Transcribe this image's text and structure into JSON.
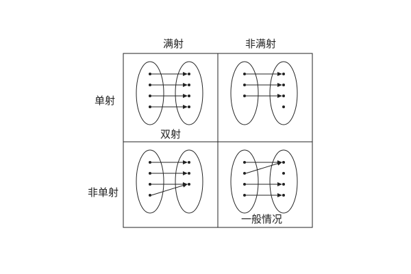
{
  "columns": [
    "满射",
    "非满射"
  ],
  "rows": [
    "单射",
    "非单射"
  ],
  "captions": {
    "bijection": "双射",
    "general": "一般情况"
  },
  "colors": {
    "line": "#222222",
    "background": "#ffffff"
  },
  "cells": [
    {
      "name": "injective-surjective",
      "left_points": 4,
      "right_points": 4,
      "arrows": [
        [
          0,
          0
        ],
        [
          1,
          1
        ],
        [
          2,
          2
        ],
        [
          3,
          3
        ]
      ]
    },
    {
      "name": "injective-not-surjective",
      "left_points": 3,
      "right_points": 4,
      "arrows": [
        [
          0,
          0
        ],
        [
          1,
          1
        ],
        [
          2,
          2
        ]
      ]
    },
    {
      "name": "surjective-not-injective",
      "left_points": 4,
      "right_points": 3,
      "arrows": [
        [
          0,
          0
        ],
        [
          1,
          1
        ],
        [
          2,
          2
        ],
        [
          3,
          2
        ]
      ]
    },
    {
      "name": "neither",
      "left_points": 4,
      "right_points": 4,
      "arrows": [
        [
          0,
          0
        ],
        [
          1,
          0
        ],
        [
          2,
          2
        ],
        [
          3,
          3
        ]
      ]
    }
  ]
}
